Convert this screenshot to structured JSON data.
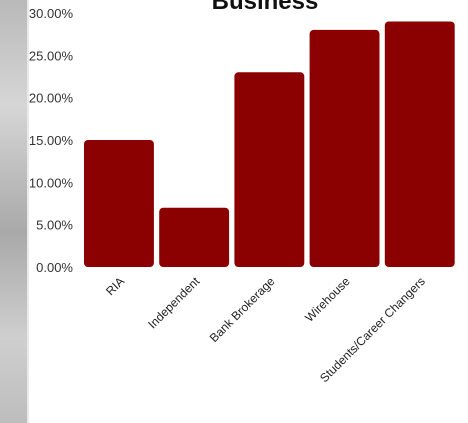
{
  "chart_data": {
    "type": "bar",
    "title": "Business",
    "categories": [
      "RIA",
      "Independent",
      "Bank Brokerage",
      "Wirehouse",
      "Students/Career Changers"
    ],
    "values": [
      15.0,
      7.0,
      23.0,
      28.0,
      29.0
    ],
    "ylim": [
      0,
      30
    ],
    "yticks": [
      "0.00%",
      "5.00%",
      "10.00%",
      "15.00%",
      "20.00%",
      "25.00%",
      "30.00%"
    ],
    "ytick_values": [
      0,
      5,
      10,
      15,
      20,
      25,
      30
    ],
    "xlabel": "",
    "ylabel": "",
    "grid": false,
    "bar_color": "#8b0000"
  }
}
